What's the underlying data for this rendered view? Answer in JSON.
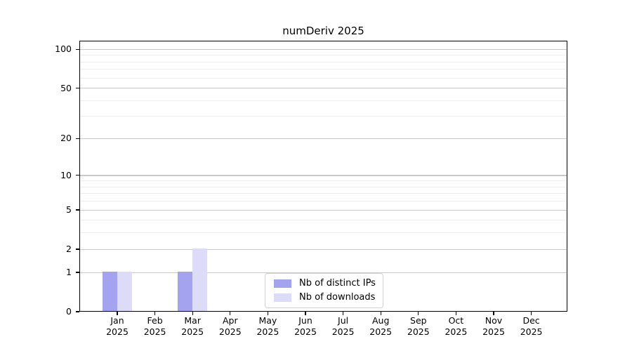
{
  "title": "numDeriv 2025",
  "chart_data": {
    "type": "bar",
    "title": "numDeriv 2025",
    "categories": [
      "Jan 2025",
      "Feb 2025",
      "Mar 2025",
      "Apr 2025",
      "May 2025",
      "Jun 2025",
      "Jul 2025",
      "Aug 2025",
      "Sep 2025",
      "Oct 2025",
      "Nov 2025",
      "Dec 2025"
    ],
    "x_tick_month_labels": [
      "Jan",
      "Feb",
      "Mar",
      "Apr",
      "May",
      "Jun",
      "Jul",
      "Aug",
      "Sep",
      "Oct",
      "Nov",
      "Dec"
    ],
    "x_tick_year_label": "2025",
    "series": [
      {
        "name": "Nb of distinct IPs",
        "color": "#a3a3ef",
        "values": [
          1,
          0,
          1,
          0,
          0,
          0,
          0,
          0,
          0,
          0,
          0,
          0
        ]
      },
      {
        "name": "Nb of downloads",
        "color": "#dcdcf8",
        "values": [
          1,
          0,
          2,
          0,
          0,
          0,
          0,
          0,
          0,
          0,
          0,
          0
        ]
      }
    ],
    "yscale": "log1p",
    "ylim": [
      0,
      117
    ],
    "y_major_ticks": [
      0,
      1,
      2,
      5,
      10,
      20,
      50,
      100
    ],
    "y_minor_ticks": [
      3,
      4,
      6,
      7,
      8,
      9,
      30,
      40,
      60,
      70,
      80,
      90
    ],
    "grid": true,
    "legend_position": "inside-bottom-center"
  },
  "colors": {
    "bar_distinct_ips": "#a3a3ef",
    "bar_downloads": "#dcdcf8",
    "major_grid": "#c9c9c9",
    "minor_grid": "#ededed",
    "spine": "#000000",
    "background": "#ffffff",
    "legend_border": "#d2d2d2",
    "text": "#000000"
  }
}
